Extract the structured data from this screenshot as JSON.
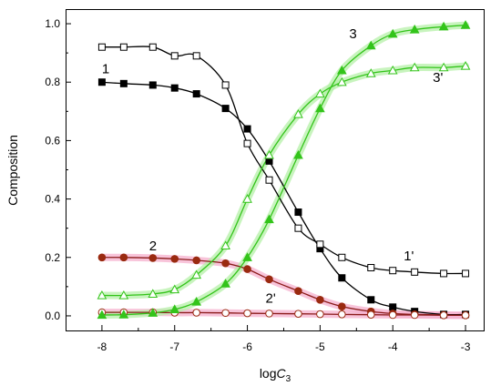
{
  "chart_data": {
    "type": "line",
    "title": "",
    "xlabel": {
      "base": "log",
      "italic": "C",
      "sub": "3"
    },
    "ylabel": "Composition",
    "xlim": [
      -8.5,
      -2.75
    ],
    "ylim": [
      -0.05,
      1.05
    ],
    "xticks": [
      -8,
      -7,
      -6,
      -5,
      -4,
      -3
    ],
    "yticks": [
      0.0,
      0.2,
      0.4,
      0.6,
      0.8,
      1.0
    ],
    "xtick_labels": [
      "-8",
      "-7",
      "-6",
      "-5",
      "-4",
      "-3"
    ],
    "ytick_labels": [
      "0.0",
      "0.2",
      "0.4",
      "0.6",
      "0.8",
      "1.0"
    ],
    "grid": false,
    "legend": "none",
    "series": [
      {
        "name": "1",
        "label_at": [
          -8.0,
          0.83
        ],
        "marker": "square-filled",
        "line_color": "#000000",
        "marker_color": "#000000",
        "band_color": "",
        "x": [
          -8.0,
          -7.7,
          -7.3,
          -7.0,
          -6.7,
          -6.3,
          -6.0,
          -5.7,
          -5.3,
          -5.0,
          -4.7,
          -4.3,
          -4.0,
          -3.7,
          -3.3,
          -3.0
        ],
        "y": [
          0.8,
          0.795,
          0.79,
          0.78,
          0.76,
          0.71,
          0.64,
          0.53,
          0.355,
          0.23,
          0.13,
          0.055,
          0.03,
          0.015,
          0.005,
          0.005
        ]
      },
      {
        "name": "1'",
        "label_at": [
          -3.85,
          0.19
        ],
        "marker": "square-open",
        "line_color": "#000000",
        "marker_color": "#000000",
        "band_color": "",
        "x": [
          -8.0,
          -7.7,
          -7.3,
          -7.0,
          -6.7,
          -6.3,
          -6.0,
          -5.7,
          -5.3,
          -5.0,
          -4.7,
          -4.3,
          -4.0,
          -3.7,
          -3.3,
          -3.0
        ],
        "y": [
          0.92,
          0.92,
          0.92,
          0.89,
          0.89,
          0.79,
          0.59,
          0.465,
          0.3,
          0.245,
          0.2,
          0.165,
          0.155,
          0.15,
          0.145,
          0.145
        ]
      },
      {
        "name": "2",
        "label_at": [
          -7.35,
          0.225
        ],
        "marker": "circle-filled",
        "line_color": "#8b1a1a",
        "marker_color": "#9a2a10",
        "band_color": "#f6b0ce",
        "x": [
          -8.0,
          -7.7,
          -7.3,
          -7.0,
          -6.7,
          -6.3,
          -6.0,
          -5.7,
          -5.3,
          -5.0,
          -4.7,
          -4.3,
          -4.0,
          -3.7,
          -3.3,
          -3.0
        ],
        "y": [
          0.2,
          0.2,
          0.198,
          0.195,
          0.19,
          0.18,
          0.16,
          0.125,
          0.085,
          0.055,
          0.032,
          0.015,
          0.008,
          0.005,
          0.003,
          0.002
        ]
      },
      {
        "name": "2'",
        "label_at": [
          -5.75,
          0.045
        ],
        "marker": "circle-open",
        "line_color": "#8b1a1a",
        "marker_color": "#9a2a10",
        "band_color": "#f6b0ce",
        "x": [
          -8.0,
          -7.7,
          -7.3,
          -7.0,
          -6.7,
          -6.3,
          -6.0,
          -5.7,
          -5.3,
          -5.0,
          -4.7,
          -4.3,
          -4.0,
          -3.7,
          -3.3,
          -3.0
        ],
        "y": [
          0.012,
          0.012,
          0.012,
          0.011,
          0.011,
          0.01,
          0.009,
          0.008,
          0.007,
          0.006,
          0.005,
          0.004,
          0.003,
          0.003,
          0.002,
          0.002
        ]
      },
      {
        "name": "3",
        "label_at": [
          -4.6,
          0.95
        ],
        "marker": "triangle-filled",
        "line_color": "#33c41a",
        "marker_color": "#33c41a",
        "band_color": "#b6f0a8",
        "x": [
          -8.0,
          -7.7,
          -7.3,
          -7.0,
          -6.7,
          -6.3,
          -6.0,
          -5.7,
          -5.3,
          -5.0,
          -4.7,
          -4.3,
          -4.0,
          -3.7,
          -3.3,
          -3.0
        ],
        "y": [
          0.003,
          0.004,
          0.01,
          0.022,
          0.048,
          0.11,
          0.2,
          0.33,
          0.55,
          0.71,
          0.84,
          0.925,
          0.965,
          0.98,
          0.99,
          0.995
        ]
      },
      {
        "name": "3'",
        "label_at": [
          -3.45,
          0.8
        ],
        "marker": "triangle-open",
        "line_color": "#33c41a",
        "marker_color": "#33c41a",
        "band_color": "#b6f0a8",
        "x": [
          -8.0,
          -7.7,
          -7.3,
          -7.0,
          -6.7,
          -6.3,
          -6.0,
          -5.7,
          -5.3,
          -5.0,
          -4.7,
          -4.3,
          -4.0,
          -3.7,
          -3.3,
          -3.0
        ],
        "y": [
          0.07,
          0.07,
          0.075,
          0.09,
          0.14,
          0.24,
          0.4,
          0.55,
          0.69,
          0.76,
          0.8,
          0.83,
          0.84,
          0.85,
          0.85,
          0.855
        ]
      }
    ]
  }
}
